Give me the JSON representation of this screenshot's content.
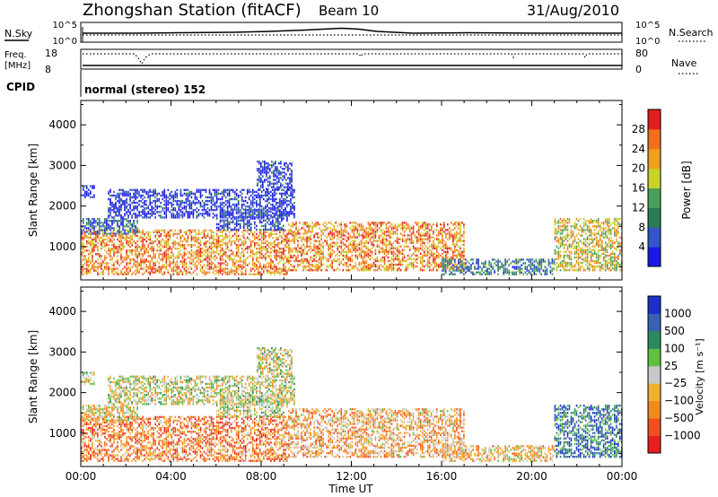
{
  "header": {
    "station": "Zhongshan Station (fitACF)",
    "beam": "Beam 10",
    "date": "31/Aug/2010"
  },
  "nsky_panel": {
    "left_label": "N.Sky",
    "left_ticks": [
      "10^5",
      "10^0"
    ],
    "right_label": "N.Search",
    "right_ticks": [
      "10^5",
      "10^0"
    ]
  },
  "freq_panel": {
    "left_label_line1": "Freq.",
    "left_label_line2": "[MHz]",
    "left_ticks": [
      "18",
      "8"
    ],
    "right_label": "Nave",
    "right_ticks": [
      "80",
      "0"
    ]
  },
  "cpid": {
    "label": "CPID",
    "mode_text": "normal (stereo) 152"
  },
  "colors": {
    "power": [
      "#1a1ae6",
      "#3355c8",
      "#2a7a55",
      "#4aa05a",
      "#c8d22a",
      "#f0a020",
      "#f07020",
      "#e02020"
    ],
    "velocity": [
      "#e62020",
      "#f05020",
      "#f08a20",
      "#f0b030",
      "#c8c8c8",
      "#60c040",
      "#2a8a60",
      "#3a60b0",
      "#1a30c8"
    ]
  },
  "chart_data": [
    {
      "type": "heatmap",
      "quantity": "Power",
      "ylabel": "Slant Range [km]",
      "yticks": [
        1000,
        2000,
        3000,
        4000
      ],
      "ylim": [
        180,
        4600
      ],
      "xlim": [
        0,
        24
      ],
      "colorbar_label": "Power [dB]",
      "colorbar_ticks": [
        "4",
        "8",
        "12",
        "16",
        "20",
        "24",
        "28"
      ],
      "colorbar_range": [
        0,
        32
      ],
      "echo_regions": [
        {
          "t0": 0.0,
          "t1": 9.2,
          "r0": 300,
          "r1": 1400,
          "level": 0.75
        },
        {
          "t0": 0.0,
          "t1": 2.5,
          "r0": 1300,
          "r1": 1700,
          "level": 0.25
        },
        {
          "t0": 0.0,
          "t1": 0.6,
          "r0": 2200,
          "r1": 2500,
          "level": 0.05
        },
        {
          "t0": 1.2,
          "t1": 9.5,
          "r0": 1700,
          "r1": 2400,
          "level": 0.08
        },
        {
          "t0": 6.0,
          "t1": 9.2,
          "r0": 1400,
          "r1": 1900,
          "level": 0.12
        },
        {
          "t0": 7.8,
          "t1": 9.4,
          "r0": 2400,
          "r1": 3100,
          "level": 0.1
        },
        {
          "t0": 9.2,
          "t1": 17.0,
          "r0": 400,
          "r1": 1600,
          "level": 0.75
        },
        {
          "t0": 16.0,
          "t1": 21.0,
          "r0": 300,
          "r1": 700,
          "level": 0.3
        },
        {
          "t0": 21.0,
          "t1": 24.0,
          "r0": 400,
          "r1": 1700,
          "level": 0.6
        }
      ]
    },
    {
      "type": "heatmap",
      "quantity": "Velocity",
      "ylabel": "Slant Range [km]",
      "yticks": [
        1000,
        2000,
        3000,
        4000
      ],
      "ylim": [
        180,
        4600
      ],
      "xlabel": "Time UT",
      "xticks": [
        "00:00",
        "04:00",
        "08:00",
        "12:00",
        "16:00",
        "20:00",
        "00:00"
      ],
      "xlim": [
        0,
        24
      ],
      "colorbar_label": "Velocity [m s⁻¹]",
      "colorbar_ticks": [
        "1000",
        "500",
        "100",
        "25",
        "−25",
        "−100",
        "−500",
        "−1000"
      ],
      "echo_regions": [
        {
          "t0": 0.0,
          "t1": 9.2,
          "r0": 300,
          "r1": 1400,
          "level": 0.25
        },
        {
          "t0": 0.0,
          "t1": 2.5,
          "r0": 1300,
          "r1": 1700,
          "level": 0.45
        },
        {
          "t0": 0.0,
          "t1": 0.6,
          "r0": 2200,
          "r1": 2500,
          "level": 0.5
        },
        {
          "t0": 1.2,
          "t1": 9.5,
          "r0": 1700,
          "r1": 2400,
          "level": 0.5
        },
        {
          "t0": 6.0,
          "t1": 9.2,
          "r0": 1400,
          "r1": 1900,
          "level": 0.5
        },
        {
          "t0": 7.8,
          "t1": 9.4,
          "r0": 2400,
          "r1": 3100,
          "level": 0.5
        },
        {
          "t0": 9.2,
          "t1": 17.0,
          "r0": 400,
          "r1": 1600,
          "level": 0.35
        },
        {
          "t0": 16.0,
          "t1": 21.0,
          "r0": 300,
          "r1": 700,
          "level": 0.4
        },
        {
          "t0": 21.0,
          "t1": 24.0,
          "r0": 400,
          "r1": 1700,
          "level": 0.8
        }
      ]
    }
  ]
}
